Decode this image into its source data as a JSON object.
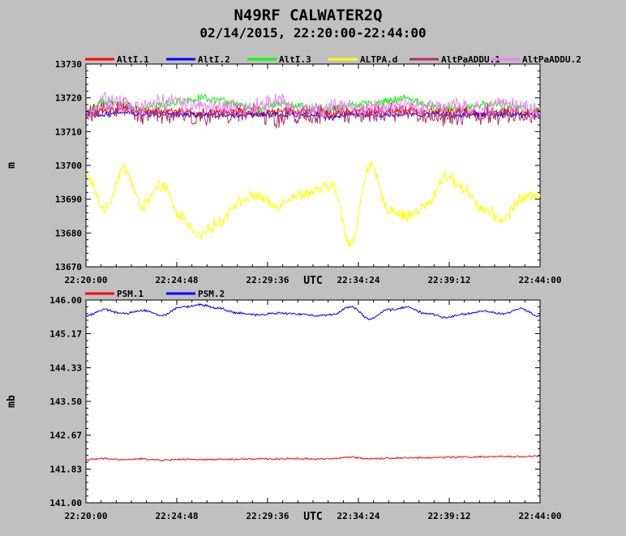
{
  "header": {
    "title": "N49RF CALWATER2Q",
    "subtitle": "02/14/2015, 22:20:00-22:44:00"
  },
  "colors": {
    "background": "#c0c0c0",
    "plot_area": "#ffffff",
    "AltI.1": "#ff0000",
    "AltI.2": "#0000ff",
    "AltI.3": "#00ff00",
    "ALTPA.d": "#ffff00",
    "AltPaADDU.1": "#b03060",
    "AltPaADDU.2": "#ee82ee",
    "PSM.1": "#ff0000",
    "PSM.2": "#0000ff"
  },
  "chart_data": [
    {
      "type": "line",
      "title": "N49RF CALWATER2Q",
      "subtitle": "02/14/2015, 22:20:00-22:44:00",
      "xlabel": "UTC",
      "ylabel": "m",
      "x_ticks": [
        "22:20:00",
        "22:24:48",
        "22:29:36",
        "22:34:24",
        "22:39:12",
        "22:44:00"
      ],
      "xlim": [
        "22:20:00",
        "22:44:00"
      ],
      "y_ticks": [
        "13730",
        "13720",
        "13710",
        "13700",
        "13690",
        "13680",
        "13670"
      ],
      "ylim": [
        13670,
        13730
      ],
      "grid": false,
      "legend_position": "top",
      "x": [
        "22:20:00",
        "22:21:00",
        "22:22:00",
        "22:23:00",
        "22:24:00",
        "22:25:00",
        "22:26:00",
        "22:27:00",
        "22:28:00",
        "22:29:00",
        "22:30:00",
        "22:31:00",
        "22:32:00",
        "22:33:00",
        "22:34:00",
        "22:35:00",
        "22:36:00",
        "22:37:00",
        "22:38:00",
        "22:39:00",
        "22:40:00",
        "22:41:00",
        "22:42:00",
        "22:43:00",
        "22:44:00"
      ],
      "series": [
        {
          "name": "AltI.1",
          "values": [
            13715,
            13716,
            13717,
            13716,
            13716,
            13716,
            13715,
            13716,
            13716,
            13715,
            13716,
            13716,
            13716,
            13715,
            13716,
            13716,
            13716,
            13716,
            13716,
            13716,
            13716,
            13715,
            13716,
            13716,
            13716
          ]
        },
        {
          "name": "AltI.2",
          "values": [
            13715,
            13715,
            13716,
            13715,
            13715,
            13715,
            13715,
            13715,
            13715,
            13715,
            13715,
            13715,
            13715,
            13714,
            13715,
            13715,
            13715,
            13715,
            13715,
            13715,
            13715,
            13715,
            13715,
            13715,
            13715
          ]
        },
        {
          "name": "AltI.3",
          "values": [
            13716,
            13719,
            13718,
            13717,
            13718,
            13719,
            13720,
            13719,
            13718,
            13716,
            13718,
            13718,
            13717,
            13717,
            13718,
            13718,
            13719,
            13720,
            13718,
            13717,
            13717,
            13718,
            13718,
            13717,
            13716
          ]
        },
        {
          "name": "ALTPA.d",
          "values": [
            13697,
            13687,
            13699,
            13688,
            13694,
            13685,
            13679,
            13683,
            13689,
            13691,
            13688,
            13691,
            13692,
            13694,
            13677,
            13700,
            13687,
            13685,
            13688,
            13697,
            13693,
            13687,
            13684,
            13690,
            13692
          ]
        },
        {
          "name": "AltPaADDU.1",
          "values": [
            13715,
            13717,
            13717,
            13715,
            13715,
            13715,
            13714,
            13715,
            13715,
            13716,
            13714,
            13715,
            13715,
            13715,
            13715,
            13715,
            13716,
            13716,
            13715,
            13714,
            13715,
            13715,
            13715,
            13715,
            13715
          ]
        },
        {
          "name": "AltPaADDU.2",
          "values": [
            13716,
            13719,
            13718,
            13717,
            13719,
            13718,
            13718,
            13717,
            13717,
            13718,
            13719,
            13717,
            13717,
            13717,
            13717,
            13717,
            13717,
            13718,
            13717,
            13717,
            13717,
            13717,
            13718,
            13717,
            13716
          ]
        }
      ]
    },
    {
      "type": "line",
      "xlabel": "UTC",
      "ylabel": "mb",
      "x_ticks": [
        "22:20:00",
        "22:24:48",
        "22:29:36",
        "22:34:24",
        "22:39:12",
        "22:44:00"
      ],
      "xlim": [
        "22:20:00",
        "22:44:00"
      ],
      "y_ticks": [
        "146.00",
        "145.17",
        "144.33",
        "143.50",
        "142.67",
        "141.83",
        "141.00"
      ],
      "ylim": [
        141.0,
        146.0
      ],
      "grid": false,
      "legend_position": "top",
      "x": [
        "22:20:00",
        "22:21:00",
        "22:22:00",
        "22:23:00",
        "22:24:00",
        "22:25:00",
        "22:26:00",
        "22:27:00",
        "22:28:00",
        "22:29:00",
        "22:30:00",
        "22:31:00",
        "22:32:00",
        "22:33:00",
        "22:34:00",
        "22:35:00",
        "22:36:00",
        "22:37:00",
        "22:38:00",
        "22:39:00",
        "22:40:00",
        "22:41:00",
        "22:42:00",
        "22:43:00",
        "22:44:00"
      ],
      "series": [
        {
          "name": "PSM.1",
          "values": [
            142.06,
            142.09,
            142.06,
            142.08,
            142.05,
            142.07,
            142.06,
            142.07,
            142.07,
            142.08,
            142.08,
            142.09,
            142.08,
            142.09,
            142.12,
            142.09,
            142.1,
            142.11,
            142.11,
            142.12,
            142.13,
            142.13,
            142.14,
            142.14,
            142.15
          ]
        },
        {
          "name": "PSM.2",
          "values": [
            145.62,
            145.76,
            145.66,
            145.75,
            145.62,
            145.82,
            145.88,
            145.8,
            145.68,
            145.63,
            145.68,
            145.66,
            145.62,
            145.64,
            145.84,
            145.53,
            145.76,
            145.82,
            145.66,
            145.58,
            145.65,
            145.73,
            145.66,
            145.78,
            145.6
          ]
        }
      ]
    }
  ]
}
